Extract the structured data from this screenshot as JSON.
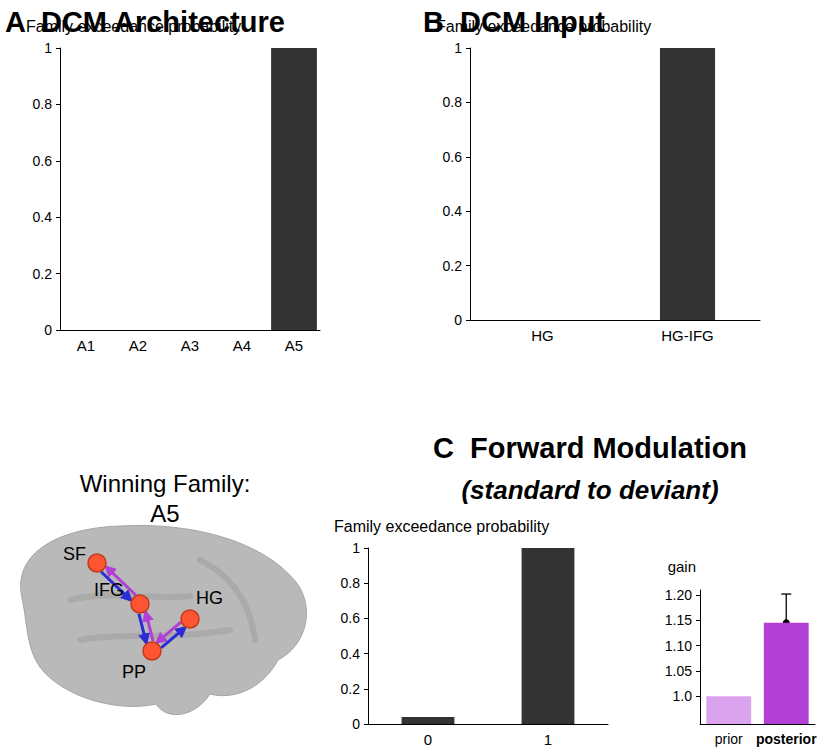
{
  "chart_data": [
    {
      "type": "bar",
      "title": "A  DCM Architecture",
      "ylabel": "Family exceedance probability",
      "categories": [
        "A1",
        "A2",
        "A3",
        "A4",
        "A5"
      ],
      "values": [
        0,
        0,
        0,
        0,
        1
      ],
      "color": "#333333",
      "ylim": [
        0,
        1
      ],
      "yticks": [
        0,
        0.2,
        0.4,
        0.6,
        0.8,
        1
      ],
      "grid": false
    },
    {
      "type": "bar",
      "title": "B  DCM Input",
      "ylabel": "Family exceedance probability",
      "categories": [
        "HG",
        "HG-IFG"
      ],
      "values": [
        0,
        1
      ],
      "color": "#333333",
      "ylim": [
        0,
        1
      ],
      "yticks": [
        0,
        0.2,
        0.4,
        0.6,
        0.8,
        1
      ],
      "grid": false
    },
    {
      "type": "bar",
      "title": "C  Forward Modulation",
      "subtitle": "(standard to deviant)",
      "ylabel": "Family exceedance probability",
      "categories": [
        "0",
        "1"
      ],
      "values": [
        0.04,
        1
      ],
      "color": "#333333",
      "ylim": [
        0,
        1
      ],
      "yticks": [
        0,
        0.2,
        0.4,
        0.6,
        0.8,
        1
      ],
      "grid": false
    },
    {
      "type": "bar",
      "ylabel": "gain",
      "categories": [
        "prior",
        "posterior"
      ],
      "values": [
        1.0,
        1.145
      ],
      "colors": [
        "#dba3ee",
        "#b23fd6"
      ],
      "error_range": [
        null,
        [
          1.088,
          1.202
        ]
      ],
      "ylim": [
        0.945,
        1.21
      ],
      "yticks": [
        {
          "value": 1.0,
          "label": "1.0"
        },
        1.05,
        {
          "value": 1.1,
          "label": "1.10"
        },
        1.15,
        {
          "value": 1.2,
          "label": "1.20"
        }
      ],
      "grid": false
    }
  ],
  "diagram": {
    "title": "Winning Family:",
    "family": "A5",
    "nodes": [
      "SF",
      "IFG",
      "HG",
      "PP"
    ]
  }
}
